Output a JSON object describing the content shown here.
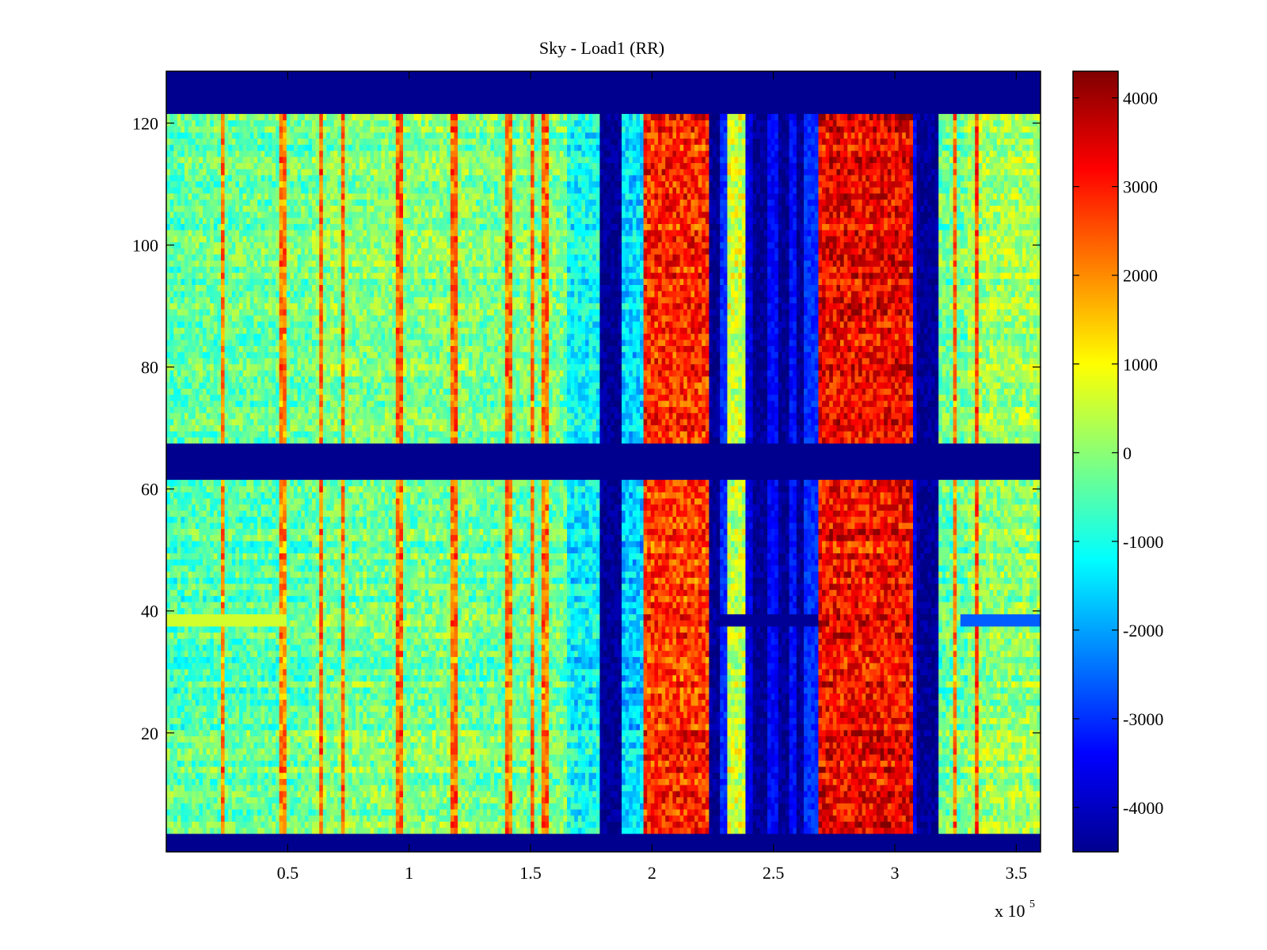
{
  "chart_data": {
    "type": "heatmap",
    "title": "Sky - Load1 (RR)",
    "xlabel": "",
    "ylabel": "",
    "x_exponent_label": "x 10",
    "x_exponent_power": "5",
    "xlim": [
      0,
      3.6
    ],
    "ylim": [
      0.5,
      128.5
    ],
    "x_ticks": [
      0.5,
      1,
      1.5,
      2,
      2.5,
      3,
      3.5
    ],
    "x_tick_labels": [
      "0.5",
      "1",
      "1.5",
      "2",
      "2.5",
      "3",
      "3.5"
    ],
    "y_ticks": [
      20,
      40,
      60,
      80,
      100,
      120
    ],
    "y_tick_labels": [
      "20",
      "40",
      "60",
      "80",
      "100",
      "120"
    ],
    "colorbar": {
      "colormap": "jet",
      "clim": [
        -4500,
        4300
      ],
      "ticks": [
        4000,
        3000,
        2000,
        1000,
        0,
        -1000,
        -2000,
        -3000,
        -4000
      ],
      "tick_labels": [
        "4000",
        "3000",
        "2000",
        "1000",
        "0",
        "-1000",
        "-2000",
        "-3000",
        "-4000"
      ]
    },
    "masked_rows": [
      [
        0.5,
        3.5
      ],
      [
        61.5,
        67.5
      ],
      [
        121.5,
        128.5
      ]
    ],
    "column_profile": [
      {
        "x0": 0.0,
        "x1": 0.08,
        "value": -400
      },
      {
        "x0": 0.08,
        "x1": 0.6,
        "value": -300
      },
      {
        "x0": 0.6,
        "x1": 1.25,
        "value": -50
      },
      {
        "x0": 1.25,
        "x1": 1.65,
        "value": -150
      },
      {
        "x0": 1.65,
        "x1": 1.78,
        "value": -1100
      },
      {
        "x0": 1.78,
        "x1": 1.88,
        "value": -4300
      },
      {
        "x0": 1.88,
        "x1": 1.97,
        "value": -1500
      },
      {
        "x0": 1.97,
        "x1": 2.24,
        "value": 2900
      },
      {
        "x0": 2.24,
        "x1": 2.28,
        "value": -4300
      },
      {
        "x0": 2.28,
        "x1": 2.31,
        "value": -3000
      },
      {
        "x0": 2.31,
        "x1": 2.38,
        "value": 600
      },
      {
        "x0": 2.38,
        "x1": 2.42,
        "value": -3600
      },
      {
        "x0": 2.42,
        "x1": 2.48,
        "value": -4300
      },
      {
        "x0": 2.48,
        "x1": 2.52,
        "value": -3400
      },
      {
        "x0": 2.52,
        "x1": 2.56,
        "value": -4300
      },
      {
        "x0": 2.56,
        "x1": 2.59,
        "value": -3300
      },
      {
        "x0": 2.59,
        "x1": 2.63,
        "value": -4300
      },
      {
        "x0": 2.63,
        "x1": 2.68,
        "value": -3000
      },
      {
        "x0": 2.68,
        "x1": 3.07,
        "value": 3300
      },
      {
        "x0": 3.07,
        "x1": 3.09,
        "value": -3500
      },
      {
        "x0": 3.09,
        "x1": 3.18,
        "value": -4300
      },
      {
        "x0": 3.18,
        "x1": 3.3,
        "value": -200
      },
      {
        "x0": 3.3,
        "x1": 3.6,
        "value": 200
      }
    ],
    "hot_lines_x": [
      0.23,
      0.48,
      0.64,
      0.73,
      0.96,
      1.18,
      1.19,
      1.41,
      1.51,
      1.56,
      3.25,
      3.34
    ],
    "anomaly_row": {
      "y": 38.5,
      "segments": [
        [
          2.28,
          2.68,
          -4300
        ],
        [
          3.27,
          3.6,
          -2600
        ],
        [
          0.0,
          0.5,
          600
        ]
      ]
    }
  }
}
